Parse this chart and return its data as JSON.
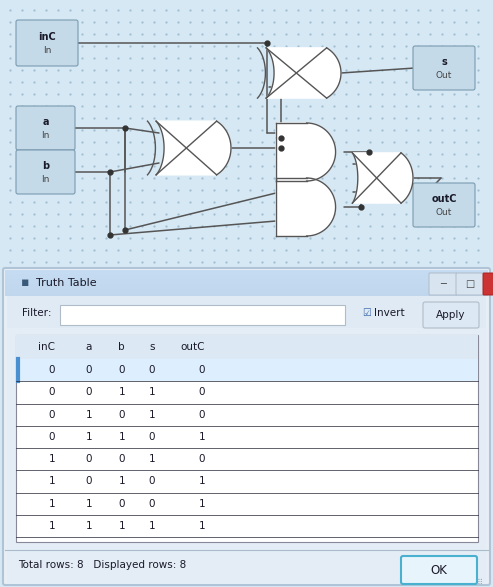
{
  "title": "Truth Table",
  "columns": [
    "inC",
    "a",
    "b",
    "s",
    "outC"
  ],
  "rows": [
    [
      0,
      0,
      0,
      0,
      0
    ],
    [
      0,
      0,
      1,
      1,
      0
    ],
    [
      0,
      1,
      0,
      1,
      0
    ],
    [
      0,
      1,
      1,
      0,
      1
    ],
    [
      1,
      0,
      0,
      1,
      0
    ],
    [
      1,
      0,
      1,
      0,
      1
    ],
    [
      1,
      1,
      0,
      0,
      1
    ],
    [
      1,
      1,
      1,
      1,
      1
    ]
  ],
  "footer_text": "Total rows: 8   Displayed rows: 8",
  "circuit_bg": "#d6e8f4",
  "dot_bg": "#9fbdd0",
  "wire_color": "#555555",
  "gate_fill": "#ffffff",
  "gate_edge": "#555555",
  "box_fill": "#c5dae8",
  "box_edge": "#7a9bb0",
  "win_bg": "#e8eef6",
  "win_outer": "#b0c4d8",
  "titlebar_bg": "#c5d9eb",
  "titlebar_text": "#1a1a2a",
  "table_border": "#888899",
  "table_row_sep": "#222233",
  "row0_highlight": "#ddeeff",
  "row0_accent": "#4a90d0",
  "footer_sep": "#aabbcc",
  "ok_border": "#4ab0d0",
  "ok_fill": "#e8f4fc"
}
